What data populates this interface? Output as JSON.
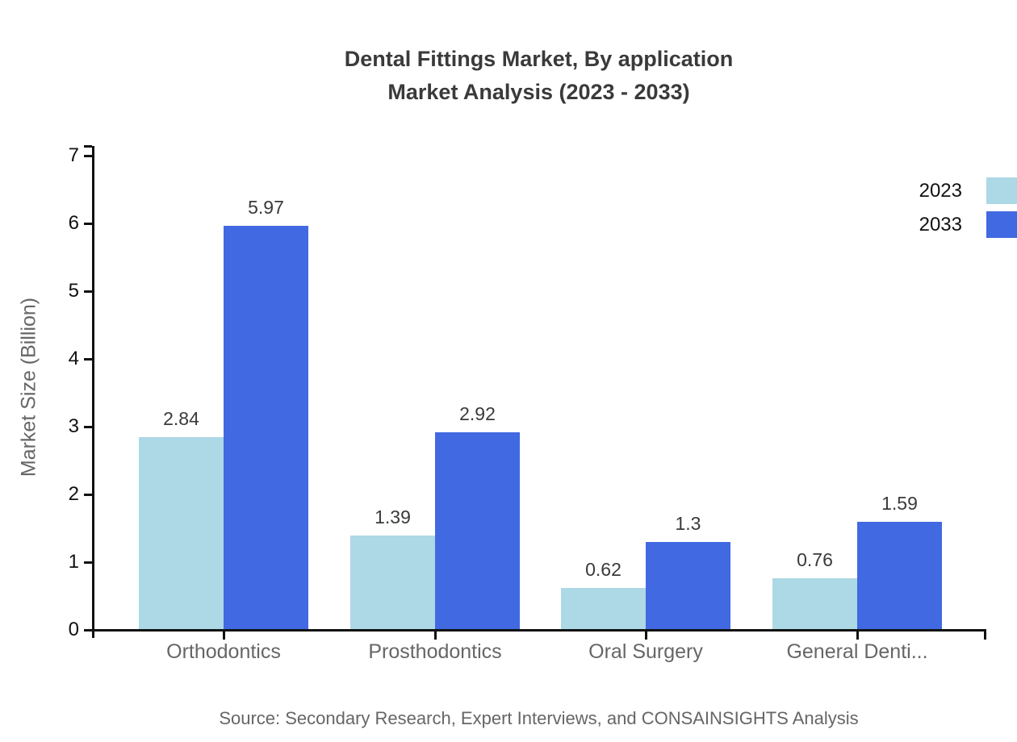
{
  "title": {
    "line1": "Dental Fittings Market, By application",
    "line2": "Market Analysis (2023 - 2033)"
  },
  "source": "Source: Secondary Research, Expert Interviews, and CONSAINSIGHTS Analysis",
  "chart_data": {
    "type": "bar",
    "categories": [
      "Orthodontics",
      "Prosthodontics",
      "Oral Surgery",
      "General Denti..."
    ],
    "series": [
      {
        "name": "2023",
        "color": "#ADD8E6",
        "values": [
          2.84,
          1.39,
          0.62,
          0.76
        ]
      },
      {
        "name": "2033",
        "color": "#4169E1",
        "values": [
          5.97,
          2.92,
          1.3,
          1.59
        ]
      }
    ],
    "title": "Dental Fittings Market, By application Market Analysis (2023 - 2033)",
    "xlabel": "",
    "ylabel": "Market Size (Billion)",
    "ylim": [
      0,
      7
    ],
    "yticks": [
      0,
      1,
      2,
      3,
      4,
      5,
      6,
      7
    ],
    "grid": false,
    "legend_position": "top-right",
    "bar_value_labels": [
      "2.84",
      "5.97",
      "1.39",
      "2.92",
      "0.62",
      "1.3",
      "0.76",
      "1.59"
    ],
    "axis_color": "#111111",
    "category_label_color": "#666666",
    "value_label_color": "#3a3a3a"
  }
}
